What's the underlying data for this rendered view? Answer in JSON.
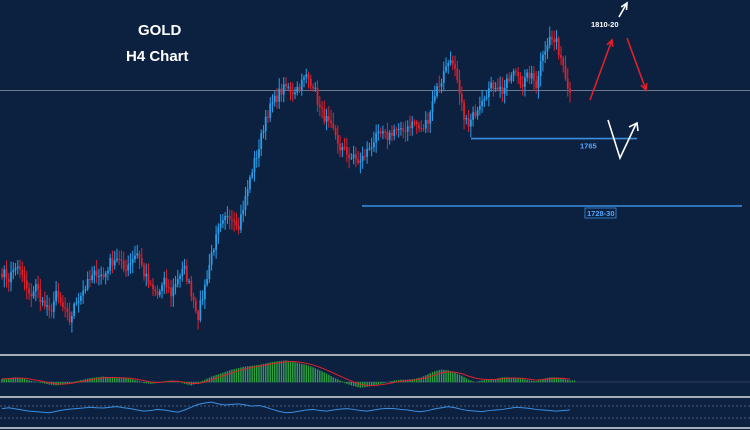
{
  "header": {
    "instrument": "GOLD",
    "timeframe": "H4 Chart"
  },
  "colors": {
    "background": "#0c2140",
    "bull_candle": "#2a9de8",
    "bear_candle": "#e0202a",
    "level_line": "#3a8fe0",
    "label_text": "#56a8ff",
    "separator": "#d8dde4",
    "histogram": "#2ea043",
    "signal_line": "#e0202a",
    "oscillator": "#3a8fe0",
    "arrow_up_red": "#e0202a",
    "arrow_white": "#ffffff"
  },
  "icons": {
    "projected_up_arrow": "red-up-arrow-icon",
    "projected_down_arrow": "red-down-arrow-icon",
    "breakout_arrow": "white-up-arrow-icon",
    "dip_arrow": "white-v-arrow-icon"
  },
  "chart_data": [
    {
      "type": "candlestick",
      "title": "GOLD",
      "subtitle": "H4 Chart",
      "xlabel": "",
      "ylabel": "",
      "grid": false,
      "levels": [
        {
          "value": 1765,
          "label": "1765"
        },
        {
          "value": 1728,
          "label": "1728-30"
        }
      ],
      "target_label": "1810-20",
      "price_path": [
        1692,
        1688,
        1695,
        1690,
        1678,
        1684,
        1675,
        1669,
        1679,
        1672,
        1665,
        1676,
        1682,
        1687,
        1692,
        1689,
        1697,
        1700,
        1693,
        1698,
        1703,
        1691,
        1683,
        1679,
        1686,
        1680,
        1689,
        1693,
        1681,
        1668,
        1684,
        1702,
        1714,
        1720,
        1723,
        1718,
        1732,
        1748,
        1760,
        1777,
        1784,
        1790,
        1793,
        1791,
        1794,
        1799,
        1795,
        1781,
        1775,
        1768,
        1760,
        1757,
        1754,
        1752,
        1758,
        1764,
        1767,
        1766,
        1770,
        1768,
        1772,
        1774,
        1769,
        1776,
        1790,
        1797,
        1809,
        1801,
        1782,
        1771,
        1780,
        1788,
        1792,
        1795,
        1791,
        1797,
        1802,
        1795,
        1800,
        1795,
        1813,
        1820,
        1817,
        1806,
        1790
      ]
    },
    {
      "type": "bar",
      "title": "",
      "grid": false,
      "series": [
        {
          "values": [
            2,
            2.5,
            3,
            2.5,
            1,
            0.2,
            -0.5,
            -1.5,
            -2,
            -1.5,
            -0.5,
            0.5,
            1.5,
            2.5,
            3,
            3.5,
            3,
            2.5,
            2.5,
            2,
            1,
            -0.5,
            -1,
            -0.5,
            0.5,
            1,
            0.5,
            -1,
            -2,
            -0.5,
            1.5,
            3.5,
            5,
            6.5,
            8,
            9,
            10,
            10.5,
            11,
            12,
            13,
            13.5,
            14,
            13,
            12,
            11,
            9.5,
            7.5,
            5.5,
            3,
            1,
            -1,
            -2.5,
            -3.5,
            -3,
            -2,
            -1,
            0,
            1,
            1.5,
            1.5,
            2,
            3,
            5,
            7,
            8,
            7.5,
            6,
            4,
            1.5,
            0,
            1,
            1.5,
            2,
            3,
            3,
            2.5,
            2,
            1,
            0.5,
            2,
            3,
            3,
            2,
            1
          ]
        },
        {
          "values": [
            2,
            2.2,
            2.5,
            2.5,
            2,
            1.2,
            0.5,
            -0.5,
            -1.2,
            -1.4,
            -1,
            -0.3,
            0.5,
            1.4,
            2.1,
            2.7,
            2.9,
            2.8,
            2.7,
            2.4,
            1.8,
            0.9,
            0,
            -0.3,
            0,
            0.5,
            0.5,
            -0.2,
            -1,
            -1,
            0,
            1.5,
            3,
            4.5,
            6,
            7.3,
            8.5,
            9.5,
            10.2,
            11,
            11.8,
            12.5,
            13.1,
            13.2,
            12.8,
            12,
            11,
            9.5,
            7.8,
            5.8,
            3.8,
            1.8,
            0,
            -1.5,
            -2.3,
            -2.3,
            -1.8,
            -1.1,
            -0.3,
            0.5,
            1,
            1.4,
            2,
            3.2,
            4.5,
            6,
            6.6,
            6.4,
            5.4,
            3.8,
            2.5,
            1.8,
            1.6,
            1.7,
            2.2,
            2.5,
            2.5,
            2.4,
            1.8,
            1.2,
            1.5,
            2.1,
            2.5,
            2.4,
            1.8
          ]
        }
      ]
    },
    {
      "type": "line",
      "title": "",
      "grid": false,
      "series": [
        {
          "values": [
            55,
            58,
            54,
            50,
            46,
            44,
            42,
            40,
            45,
            50,
            53,
            55,
            57,
            60,
            58,
            57,
            60,
            62,
            58,
            55,
            50,
            46,
            48,
            52,
            50,
            46,
            42,
            50,
            60,
            70,
            75,
            78,
            72,
            68,
            70,
            72,
            68,
            64,
            66,
            60,
            52,
            45,
            40,
            42,
            46,
            50,
            52,
            48,
            46,
            50,
            53,
            55,
            52,
            48,
            46,
            50,
            54,
            56,
            55,
            52,
            50,
            46,
            44,
            48,
            54,
            58,
            62,
            58,
            52,
            48,
            46,
            44,
            48,
            50,
            52,
            56,
            60,
            58,
            56,
            52,
            50,
            48,
            46,
            48,
            50
          ]
        }
      ]
    }
  ]
}
